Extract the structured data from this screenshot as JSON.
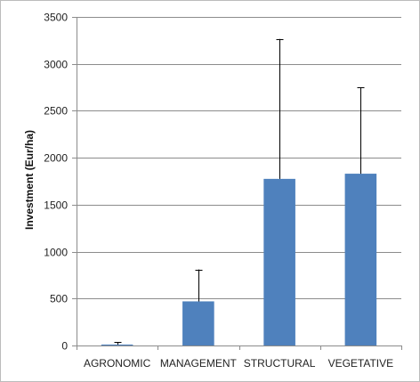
{
  "chart_data": {
    "type": "bar",
    "categories": [
      "AGRONOMIC",
      "MANAGEMENT",
      "STRUCTURAL",
      "VEGETATIVE"
    ],
    "values": [
      10,
      470,
      1775,
      1830
    ],
    "error_upper": [
      35,
      810,
      3265,
      2750
    ],
    "title": "",
    "xlabel": "",
    "ylabel": "Investment (Eur/ha)",
    "ylim": [
      0,
      3500
    ],
    "yticks": [
      0,
      500,
      1000,
      1500,
      2000,
      2500,
      3000,
      3500
    ],
    "grid": true,
    "legend": "none",
    "bar_color": "#4F81BD",
    "grid_color": "#8C8C8C",
    "error_bar_color": "#000000"
  }
}
